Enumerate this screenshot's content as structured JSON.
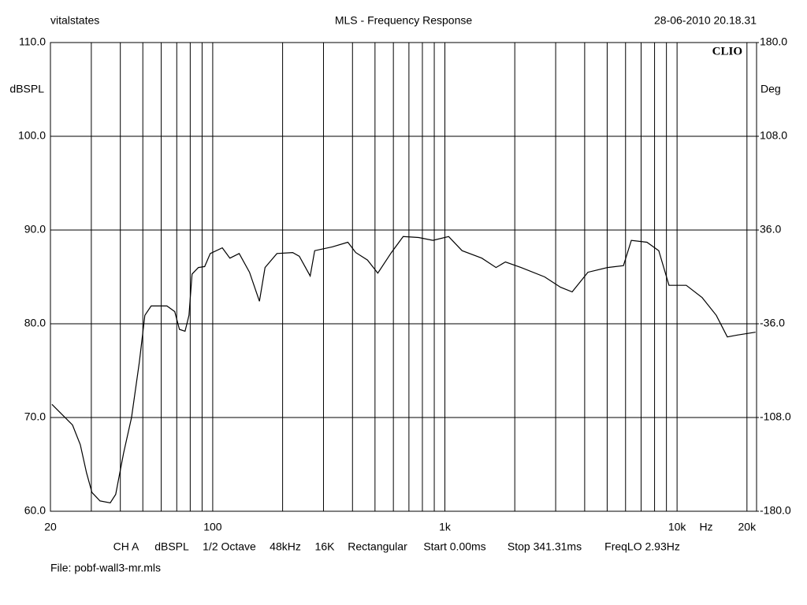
{
  "chart_data": {
    "type": "line",
    "header_left": "vitalstates",
    "title": "MLS - Frequency Response",
    "header_right": "28-06-2010 20.18.31",
    "watermark": "CLIO",
    "y_label": "dBSPL",
    "y2_label": "Deg",
    "x_unit": "Hz",
    "log_x": true,
    "grid": true,
    "xlim": [
      20,
      22000
    ],
    "xticks": [
      20,
      100,
      {
        "value": 1000,
        "label": "1k"
      },
      {
        "value": 10000,
        "label": "10k"
      },
      {
        "value": 20000,
        "label": "20k"
      }
    ],
    "x_minor_ticks": [
      30,
      40,
      50,
      60,
      70,
      80,
      90,
      200,
      300,
      400,
      500,
      600,
      700,
      800,
      900,
      2000,
      3000,
      4000,
      5000,
      6000,
      7000,
      8000,
      9000
    ],
    "ylim": [
      60,
      110
    ],
    "yticks": [
      {
        "value": 60,
        "label": "60.0"
      },
      {
        "value": 70,
        "label": "70.0"
      },
      {
        "value": 80,
        "label": "80.0"
      },
      {
        "value": 90,
        "label": "90.0"
      },
      {
        "value": 100,
        "label": "100.0"
      },
      {
        "value": 110,
        "label": "110.0"
      }
    ],
    "y2lim": [
      -180,
      180
    ],
    "y2ticks": [
      {
        "value": -180,
        "label": "-180.0"
      },
      {
        "value": -108,
        "label": "-108.0"
      },
      {
        "value": -36,
        "label": "-36.0"
      },
      {
        "value": 36,
        "label": "36.0"
      },
      {
        "value": 108,
        "label": "108.0"
      },
      {
        "value": 180,
        "label": "180.0"
      }
    ],
    "x": [
      20.3,
      24.9,
      26.9,
      28.6,
      30.2,
      32.7,
      36.2,
      38.2,
      41.3,
      44.7,
      48.3,
      51,
      54.3,
      63.5,
      68.6,
      71.9,
      76,
      79,
      81.5,
      86.7,
      92.3,
      97.6,
      110,
      118.6,
      130,
      144,
      159,
      168,
      189,
      221,
      236,
      263,
      275,
      327,
      382,
      413,
      464,
      514,
      588,
      661,
      771,
      888,
      1038,
      1186,
      1442,
      1660,
      1822,
      2128,
      2690,
      3148,
      3534,
      4132,
      5020,
      5876,
      6354,
      7418,
      8340,
      9230,
      10960,
      12820,
      14756,
      16460,
      18200,
      21780
    ],
    "series": [
      {
        "name": "CH A",
        "color": "#000000",
        "values": [
          71.4,
          69.2,
          67.1,
          64.1,
          62.0,
          61.1,
          60.9,
          61.8,
          66.2,
          70.0,
          75.9,
          80.9,
          81.9,
          81.9,
          81.3,
          79.4,
          79.2,
          80.9,
          85.3,
          86.0,
          86.1,
          87.5,
          88.1,
          87.0,
          87.5,
          85.5,
          82.4,
          86.0,
          87.5,
          87.6,
          87.2,
          85.1,
          87.8,
          88.2,
          88.7,
          87.6,
          86.8,
          85.4,
          87.6,
          89.3,
          89.2,
          88.9,
          89.3,
          87.8,
          87.0,
          86.0,
          86.6,
          86.0,
          85.0,
          83.9,
          83.4,
          85.5,
          86.0,
          86.2,
          88.9,
          88.7,
          87.8,
          84.1,
          84.1,
          82.8,
          80.9,
          78.6,
          78.8,
          79.1
        ]
      }
    ],
    "footer": [
      "CH A",
      "dBSPL",
      "1/2 Octave",
      "48kHz",
      "16K",
      "Rectangular",
      "Start 0.00ms",
      "Stop 341.31ms",
      "FreqLO 2.93Hz"
    ],
    "file": "File: pobf-wall3-mr.mls"
  }
}
